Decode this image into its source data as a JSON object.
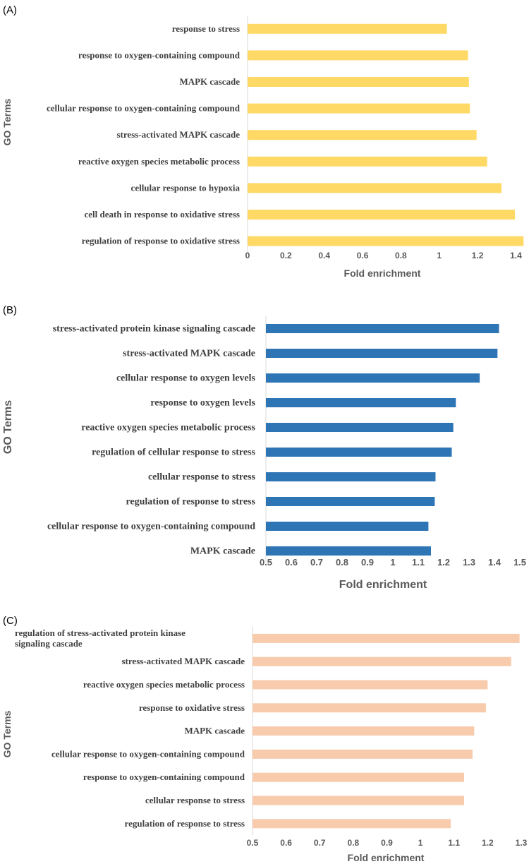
{
  "chart_data": [
    {
      "type": "bar",
      "orientation": "horizontal",
      "panel_label": "(A)",
      "color": "#ffd966",
      "categories": [
        "response to stress",
        "response to oxygen-containing compound",
        "MAPK cascade",
        "cellular response to oxygen-containing compound",
        "stress-activated MAPK cascade",
        "reactive oxygen species metabolic process",
        "cellular response to hypoxia",
        "cell death in response to oxidative stress",
        "regulation of response to oxidative stress"
      ],
      "values": [
        1.04,
        1.15,
        1.155,
        1.16,
        1.195,
        1.25,
        1.325,
        1.395,
        1.44
      ],
      "xlabel": "Fold enrichment",
      "ylabel": "GO Terms",
      "xlim": [
        0,
        1.45
      ],
      "xticks": [
        "0",
        "0.2",
        "0.4",
        "0.6",
        "0.8",
        "1",
        "1.2",
        "1.4"
      ],
      "xtick_values": [
        0,
        0.2,
        0.4,
        0.6,
        0.8,
        1,
        1.2,
        1.4
      ],
      "grid": false
    },
    {
      "type": "bar",
      "orientation": "horizontal",
      "panel_label": "(B)",
      "color": "#2e75b6",
      "categories": [
        "stress-activated protein kinase signaling cascade",
        "stress-activated MAPK cascade",
        "cellular response to oxygen levels",
        "response to oxygen levels",
        "reactive oxygen species metabolic process",
        "regulation of cellular response to stress",
        "cellular response to stress",
        "regulation of response to stress",
        "cellular response to oxygen-containing compound",
        "MAPK cascade"
      ],
      "values": [
        1.418,
        1.412,
        1.342,
        1.248,
        1.238,
        1.232,
        1.168,
        1.165,
        1.14,
        1.15
      ],
      "xlabel": "Fold enrichment",
      "ylabel": "GO Terms",
      "xlim": [
        0.5,
        1.5
      ],
      "xticks": [
        "0.5",
        "0.6",
        "0.7",
        "0.8",
        "0.9",
        "1",
        "1.1",
        "1.2",
        "1.3",
        "1.4",
        "1.5"
      ],
      "xtick_values": [
        0.5,
        0.6,
        0.7,
        0.8,
        0.9,
        1,
        1.1,
        1.2,
        1.3,
        1.4,
        1.5
      ],
      "grid": false
    },
    {
      "type": "bar",
      "orientation": "horizontal",
      "panel_label": "(C)",
      "color": "#f8cbad",
      "categories": [
        "regulation of stress-activated protein kinase signaling cascade",
        "stress-activated MAPK cascade",
        "reactive oxygen species metabolic process",
        "response to oxidative stress",
        "MAPK cascade",
        "cellular response to oxygen-containing compound",
        "response to oxygen-containing compound",
        "cellular response to stress",
        "regulation of response to stress"
      ],
      "values": [
        1.295,
        1.27,
        1.2,
        1.195,
        1.16,
        1.155,
        1.13,
        1.13,
        1.09
      ],
      "xlabel": "Fold enrichment",
      "ylabel": "GO Terms",
      "xlim": [
        0.5,
        1.3
      ],
      "xticks": [
        "0.5",
        "0.6",
        "0.7",
        "0.8",
        "0.9",
        "1",
        "1.1",
        "1.2",
        "1.3"
      ],
      "xtick_values": [
        0.5,
        0.6,
        0.7,
        0.8,
        0.9,
        1,
        1.1,
        1.2,
        1.3
      ],
      "grid": false
    }
  ]
}
